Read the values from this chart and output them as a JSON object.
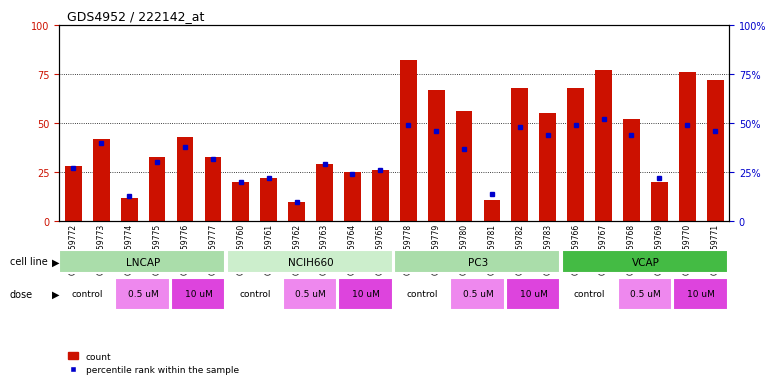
{
  "title": "GDS4952 / 222142_at",
  "samples": [
    "GSM1359772",
    "GSM1359773",
    "GSM1359774",
    "GSM1359775",
    "GSM1359776",
    "GSM1359777",
    "GSM1359760",
    "GSM1359761",
    "GSM1359762",
    "GSM1359763",
    "GSM1359764",
    "GSM1359765",
    "GSM1359778",
    "GSM1359779",
    "GSM1359780",
    "GSM1359781",
    "GSM1359782",
    "GSM1359783",
    "GSM1359766",
    "GSM1359767",
    "GSM1359768",
    "GSM1359769",
    "GSM1359770",
    "GSM1359771"
  ],
  "red_values": [
    28,
    42,
    12,
    33,
    43,
    33,
    20,
    22,
    10,
    29,
    25,
    26,
    82,
    67,
    56,
    11,
    68,
    55,
    68,
    77,
    52,
    20,
    76,
    72
  ],
  "blue_values": [
    27,
    40,
    13,
    30,
    38,
    32,
    20,
    22,
    10,
    29,
    24,
    26,
    49,
    46,
    37,
    14,
    48,
    44,
    49,
    52,
    44,
    22,
    49,
    46
  ],
  "cell_lines": [
    {
      "label": "LNCAP",
      "start": 0,
      "end": 6,
      "color": "#aaffaa"
    },
    {
      "label": "NCIH660",
      "start": 6,
      "end": 12,
      "color": "#ccffcc"
    },
    {
      "label": "PC3",
      "start": 12,
      "end": 18,
      "color": "#aaffaa"
    },
    {
      "label": "VCAP",
      "start": 18,
      "end": 24,
      "color": "#44dd44"
    }
  ],
  "doses": [
    {
      "label": "control",
      "start": 0,
      "end": 2,
      "color": "#ffffff"
    },
    {
      "label": "0.5 uM",
      "start": 2,
      "end": 4,
      "color": "#ff88ff"
    },
    {
      "label": "10 uM",
      "start": 4,
      "end": 6,
      "color": "#ff44ff"
    },
    {
      "label": "control",
      "start": 6,
      "end": 8,
      "color": "#ffffff"
    },
    {
      "label": "0.5 uM",
      "start": 8,
      "end": 10,
      "color": "#ff88ff"
    },
    {
      "label": "10 uM",
      "start": 10,
      "end": 12,
      "color": "#ff44ff"
    },
    {
      "label": "control",
      "start": 12,
      "end": 14,
      "color": "#ffffff"
    },
    {
      "label": "0.5 uM",
      "start": 14,
      "end": 16,
      "color": "#ff88ff"
    },
    {
      "label": "10 uM",
      "start": 16,
      "end": 18,
      "color": "#ff44ff"
    },
    {
      "label": "control",
      "start": 18,
      "end": 20,
      "color": "#ffffff"
    },
    {
      "label": "0.5 uM",
      "start": 20,
      "end": 22,
      "color": "#ff88ff"
    },
    {
      "label": "10 uM",
      "start": 22,
      "end": 24,
      "color": "#ff44ff"
    }
  ],
  "ylim": [
    0,
    100
  ],
  "yticks": [
    0,
    25,
    50,
    75,
    100
  ],
  "bar_color": "#cc1100",
  "dot_color": "#0000cc",
  "bg_color": "#ffffff",
  "axis_color_left": "#cc1100",
  "axis_color_right": "#0000cc",
  "grid_style": "dotted",
  "bar_width": 0.6
}
